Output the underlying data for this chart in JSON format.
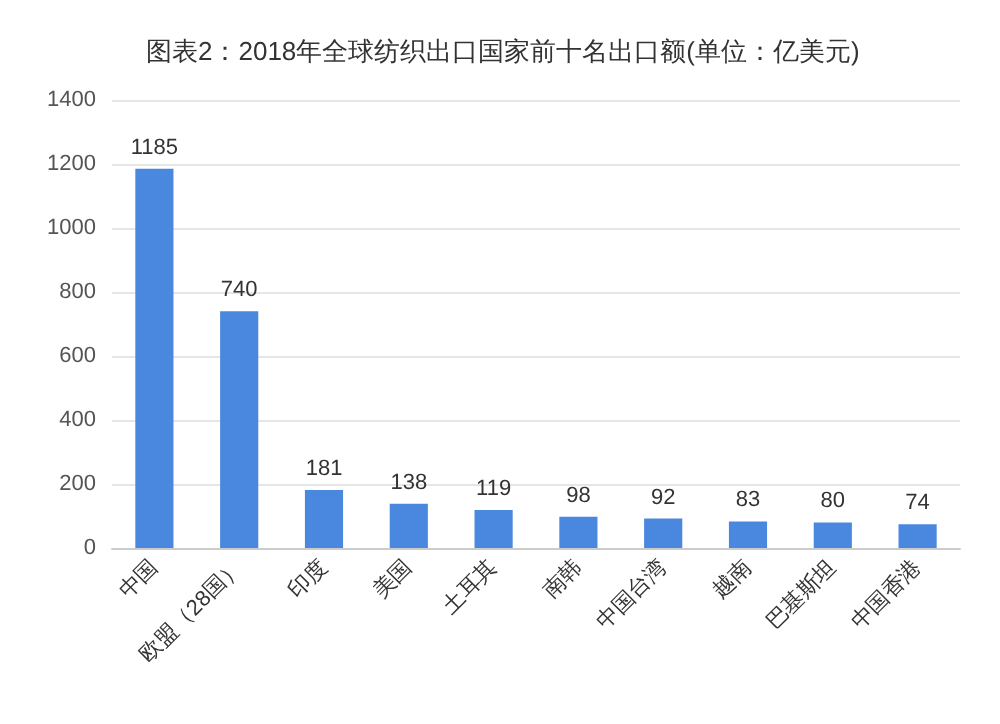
{
  "chart_data": {
    "type": "bar",
    "title": "图表2：2018年全球纺织出口国家前十名出口额(单位：亿美元)",
    "categories": [
      "中国",
      "欧盟（28国）",
      "印度",
      "美国",
      "土耳其",
      "南韩",
      "中国台湾",
      "越南",
      "巴基斯坦",
      "中国香港"
    ],
    "values": [
      1185,
      740,
      181,
      138,
      119,
      98,
      92,
      83,
      80,
      74
    ],
    "color": "#4a88e0",
    "ylim": [
      0,
      1400
    ],
    "yticks": [
      0,
      200,
      400,
      600,
      800,
      1000,
      1200,
      1400
    ],
    "grid": "y",
    "data_labels": true
  }
}
